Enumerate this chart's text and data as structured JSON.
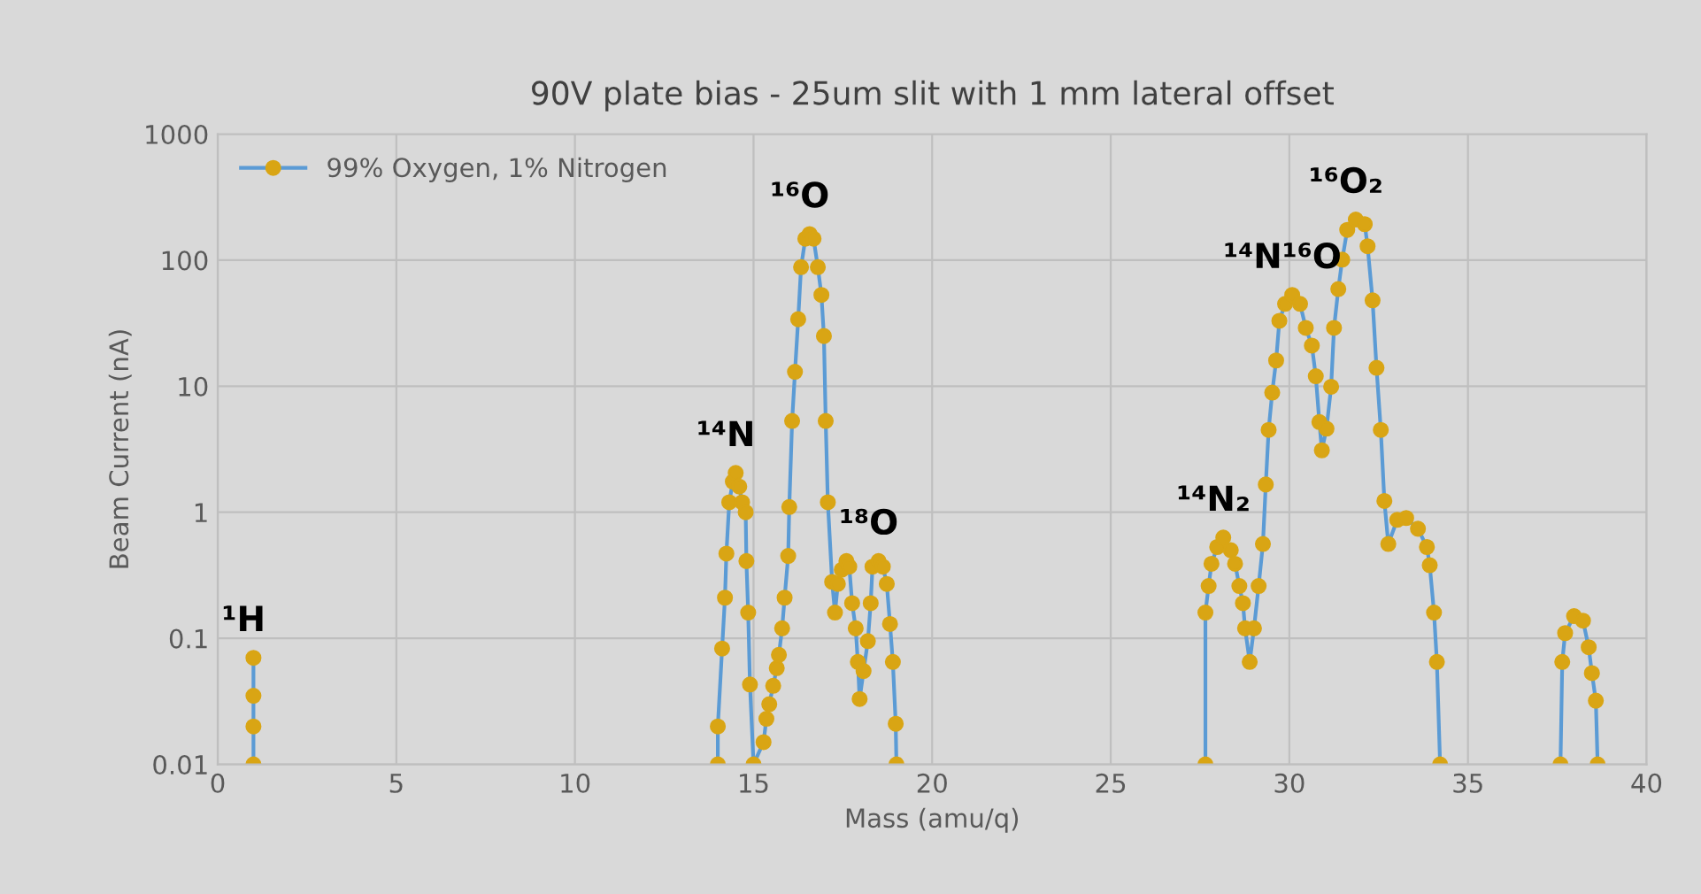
{
  "chart_data": {
    "type": "line",
    "title": "90V plate bias - 25um slit with 1 mm lateral offset",
    "xlabel": "Mass (amu/q)",
    "ylabel": "Beam Current (nA)",
    "log": "y",
    "grid": true,
    "legend": "top left",
    "marker": "circle",
    "line_style": "solid",
    "xlim": [
      0,
      40
    ],
    "xticks": [
      0,
      5,
      10,
      15,
      20,
      25,
      30,
      35,
      40
    ],
    "ylim": [
      0.01,
      1000
    ],
    "yticks": [
      0.01,
      0.1,
      1,
      10,
      100,
      1000
    ],
    "series": [
      {
        "name": "99% Oxygen, 1% Nitrogen",
        "color": "#d9a514",
        "x": [
          1.0,
          1.0,
          1.0,
          1.0,
          null,
          14.0,
          14.0,
          14.12,
          14.2,
          14.24,
          14.32,
          14.42,
          14.5,
          14.6,
          14.68,
          14.78,
          14.8,
          14.85,
          14.9,
          15.0,
          15.28,
          15.36,
          15.44,
          15.55,
          15.65,
          15.71,
          15.8,
          15.87,
          15.97,
          16.0,
          16.08,
          16.16,
          16.25,
          16.33,
          16.45,
          16.57,
          16.68,
          16.8,
          16.9,
          16.97,
          17.02,
          17.08,
          17.2,
          17.28,
          17.36,
          17.47,
          17.6,
          17.68,
          17.76,
          17.86,
          17.92,
          17.97,
          18.08,
          18.2,
          18.28,
          18.33,
          18.5,
          18.62,
          18.73,
          18.82,
          18.9,
          18.98,
          19.0,
          null,
          27.65,
          27.65,
          27.74,
          27.82,
          27.98,
          28.15,
          28.36,
          28.48,
          28.6,
          28.7,
          28.76,
          28.89,
          29.01,
          29.14,
          29.26,
          29.34,
          29.42,
          29.52,
          29.63,
          29.72,
          29.88,
          30.08,
          30.3,
          30.46,
          30.63,
          30.74,
          30.84,
          30.91,
          31.04,
          31.17,
          31.25,
          31.37,
          31.48,
          31.62,
          31.86,
          32.11,
          32.19,
          32.33,
          32.44,
          32.56,
          32.66,
          32.77,
          33.02,
          33.27,
          33.6,
          33.85,
          33.93,
          34.05,
          34.13,
          34.22,
          null,
          37.59,
          37.64,
          37.72,
          37.97,
          38.22,
          38.38,
          38.47,
          38.58,
          38.63
        ],
        "values": [
          0.01,
          0.02,
          0.035,
          0.07,
          null,
          0.01,
          0.02,
          0.083,
          0.21,
          0.47,
          1.2,
          1.75,
          2.05,
          1.6,
          1.2,
          1.0,
          0.41,
          0.16,
          0.043,
          0.01,
          0.015,
          0.023,
          0.03,
          0.042,
          0.058,
          0.074,
          0.12,
          0.21,
          0.45,
          1.1,
          5.3,
          13,
          34,
          88,
          148,
          161,
          148,
          88,
          53,
          25,
          5.3,
          1.2,
          0.28,
          0.16,
          0.27,
          0.35,
          0.41,
          0.37,
          0.19,
          0.12,
          0.065,
          0.033,
          0.055,
          0.095,
          0.19,
          0.37,
          0.41,
          0.37,
          0.27,
          0.13,
          0.065,
          0.021,
          0.01,
          null,
          0.01,
          0.16,
          0.26,
          0.39,
          0.53,
          0.63,
          0.5,
          0.39,
          0.26,
          0.19,
          0.12,
          0.065,
          0.12,
          0.26,
          0.56,
          1.66,
          4.5,
          8.9,
          16,
          33,
          45,
          53,
          45,
          29,
          21,
          12,
          5.2,
          3.1,
          4.6,
          9.9,
          29,
          59,
          101,
          174,
          210,
          193,
          129,
          48,
          14,
          4.5,
          1.23,
          0.56,
          0.87,
          0.9,
          0.74,
          0.53,
          0.38,
          0.16,
          0.065,
          0.01,
          null,
          0.01,
          0.065,
          0.11,
          0.15,
          0.138,
          0.085,
          0.053,
          0.032,
          0.01
        ]
      }
    ],
    "annotations": [
      {
        "text": "¹H",
        "x": 1.0,
        "y": 0.07
      },
      {
        "text": "¹⁴N",
        "x": 14.5,
        "y": 2.05
      },
      {
        "text": "¹⁶O",
        "x": 16.57,
        "y": 161
      },
      {
        "text": "¹⁸O",
        "x": 18.5,
        "y": 0.41
      },
      {
        "text": "¹⁴N₂",
        "x": 28.15,
        "y": 0.63
      },
      {
        "text": "¹⁴N¹⁶O",
        "x": 30.08,
        "y": 53
      },
      {
        "text": "¹⁶O₂",
        "x": 31.86,
        "y": 210
      }
    ]
  }
}
